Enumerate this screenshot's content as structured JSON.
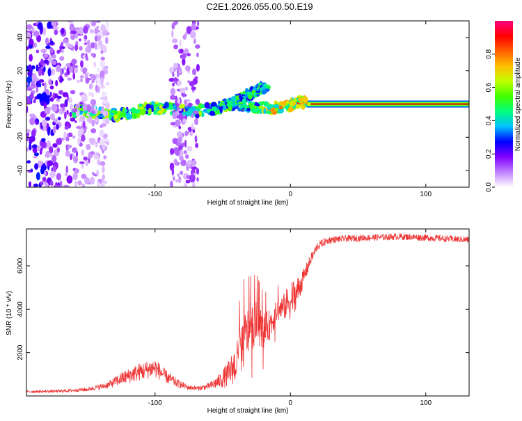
{
  "title": "C2E1.2026.055.00.50.E19",
  "chart_data": [
    {
      "type": "heatmap",
      "xlabel": "Height of straight line (km)",
      "ylabel": "Frequency (Hz)",
      "xlim": [
        -195,
        132
      ],
      "ylim": [
        -50,
        50
      ],
      "xticks": [
        -100,
        0,
        100
      ],
      "xtick_labels": [
        "-100",
        "0",
        "100"
      ],
      "yticks": [
        -40,
        -20,
        0,
        20,
        40
      ],
      "ytick_labels": [
        "-40",
        "-20",
        "0",
        "20",
        "40"
      ],
      "colorbar": {
        "label": "Normalized spectral amplitude",
        "range": [
          0,
          1
        ],
        "ticks": [
          0.0,
          0.2,
          0.4,
          0.6,
          0.8
        ],
        "tick_labels": [
          "0.0",
          "0.2",
          "0.4",
          "0.6",
          "0.8"
        ],
        "colors": [
          "#ffffff",
          "#c080ff",
          "#8000ff",
          "#0000ff",
          "#00c0ff",
          "#00ff80",
          "#40ff00",
          "#c0ff00",
          "#ffc000",
          "#ff6000",
          "#ff0000",
          "#ff0080"
        ]
      },
      "features": [
        {
          "name": "carrier",
          "x_from": 12,
          "x_to": 132,
          "frequency": 0,
          "amplitude": 1.0
        },
        {
          "name": "main-trace",
          "x_from": -160,
          "x_to": 12,
          "frequency_start": -6,
          "frequency_end": 0,
          "amplitude": 0.45
        },
        {
          "name": "split-branch",
          "x_from": -60,
          "x_to": -20,
          "frequency_start": 0,
          "frequency_end": 14,
          "amplitude": 0.4
        },
        {
          "name": "noise-band",
          "x_from": -195,
          "x_to": -135,
          "amplitude": 0.15
        },
        {
          "name": "noise-band",
          "x_from": -88,
          "x_to": -68,
          "amplitude": 0.1
        }
      ]
    },
    {
      "type": "line",
      "xlabel": "Height of straight line (km)",
      "ylabel": "SNR (10 * v/v)",
      "xlim": [
        -195,
        132
      ],
      "ylim": [
        0,
        7700
      ],
      "xticks": [
        -100,
        0,
        100
      ],
      "xtick_labels": [
        "-100",
        "0",
        "100"
      ],
      "yticks": [
        2000,
        4000,
        6000
      ],
      "ytick_labels": [
        "2000",
        "4000",
        "6000"
      ],
      "series": [
        {
          "name": "SNR",
          "color": "#ee3333",
          "x": [
            -195,
            -170,
            -150,
            -135,
            -125,
            -112,
            -100,
            -92,
            -84,
            -76,
            -68,
            -60,
            -52,
            -46,
            -40,
            -35,
            -30,
            -25,
            -20,
            -15,
            -10,
            -5,
            0,
            5,
            10,
            15,
            20,
            25,
            30,
            40,
            60,
            80,
            100,
            115,
            132
          ],
          "y": [
            200,
            220,
            300,
            500,
            800,
            1100,
            1300,
            900,
            600,
            400,
            350,
            450,
            700,
            1000,
            1500,
            2500,
            3100,
            3400,
            3000,
            3300,
            3900,
            4100,
            4400,
            4800,
            5500,
            6300,
            6900,
            7100,
            7200,
            7250,
            7300,
            7350,
            7300,
            7250,
            7200
          ],
          "noise": [
            60,
            70,
            90,
            150,
            300,
            400,
            450,
            300,
            200,
            120,
            100,
            150,
            350,
            600,
            900,
            1300,
            1100,
            1000,
            800,
            700,
            500,
            600,
            900,
            700,
            400,
            250,
            200,
            180,
            160,
            150,
            150,
            150,
            150,
            150,
            150
          ]
        }
      ]
    }
  ]
}
